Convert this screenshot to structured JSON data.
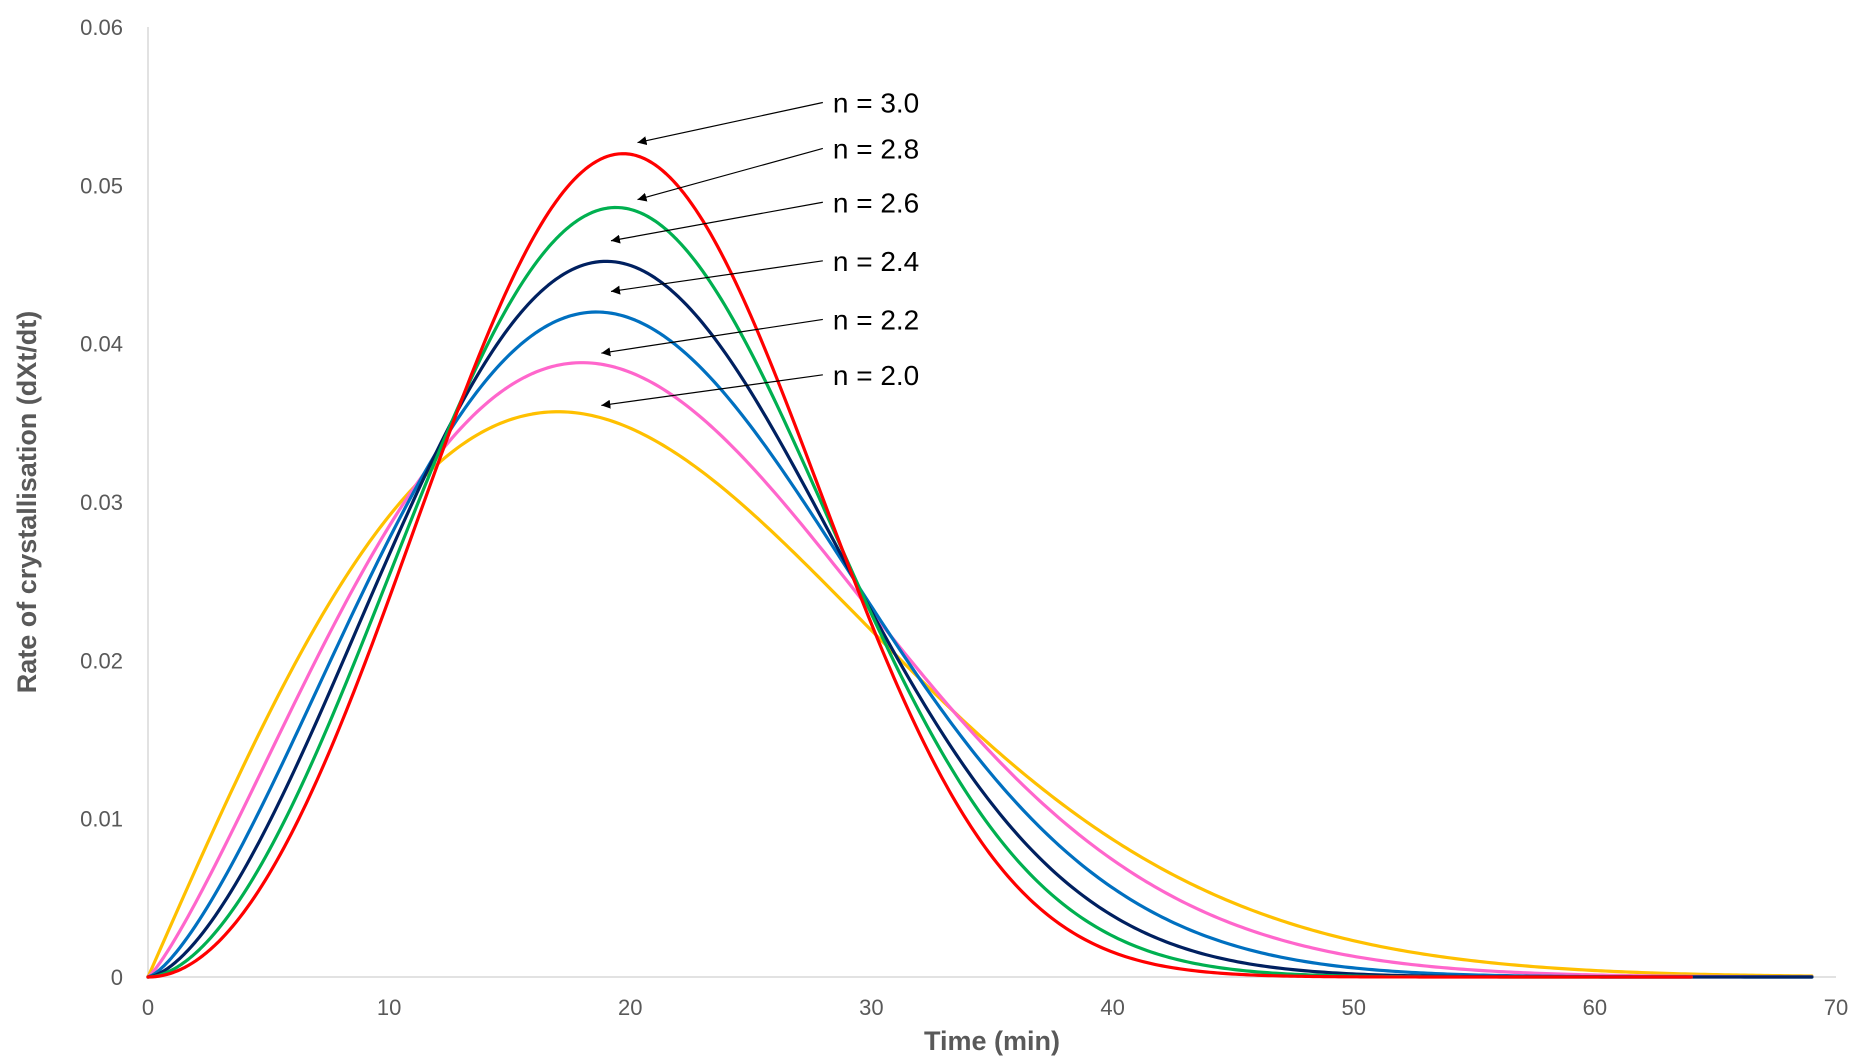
{
  "chart_data": {
    "type": "line",
    "title": "",
    "xlabel": "Time (min)",
    "ylabel": "Rate of crystallisation (dXt/dt)",
    "xlim": [
      0,
      70
    ],
    "ylim": [
      0,
      0.06
    ],
    "x_ticks": [
      0,
      10,
      20,
      30,
      40,
      50,
      60,
      70
    ],
    "y_ticks": [
      0,
      0.01,
      0.02,
      0.03,
      0.04,
      0.05,
      0.06
    ],
    "x_tick_labels": [
      "0",
      "10",
      "20",
      "30",
      "40",
      "50",
      "60",
      "70"
    ],
    "y_tick_labels": [
      "0",
      "0.01",
      "0.02",
      "0.03",
      "0.04",
      "0.05",
      "0.06"
    ],
    "grid": false,
    "legend": "none",
    "series": [
      {
        "name": "n = 2.0",
        "n": 2.0,
        "color": "#FFC000",
        "peak": {
          "x": 17.0,
          "y": 0.0357
        },
        "x_end": 69
      },
      {
        "name": "n = 2.2",
        "n": 2.2,
        "color": "#FF66CC",
        "peak": {
          "x": 18.0,
          "y": 0.0388
        },
        "x_end": 69
      },
      {
        "name": "n = 2.4",
        "n": 2.4,
        "color": "#0070C0",
        "peak": {
          "x": 18.6,
          "y": 0.042
        },
        "x_end": 69
      },
      {
        "name": "n = 2.6",
        "n": 2.6,
        "color": "#002060",
        "peak": {
          "x": 19.0,
          "y": 0.0452
        },
        "x_end": 69
      },
      {
        "name": "n = 2.8",
        "n": 2.8,
        "color": "#00B050",
        "peak": {
          "x": 19.4,
          "y": 0.0486
        },
        "x_end": 64
      },
      {
        "name": "n = 3.0",
        "n": 3.0,
        "color": "#FF0000",
        "peak": {
          "x": 19.7,
          "y": 0.052
        },
        "x_end": 64
      }
    ],
    "annotations": [
      {
        "text": "n = 3.0",
        "series": "n = 3.0",
        "text_at": {
          "x": 28.4,
          "y": 0.0546
        },
        "points_to": {
          "x": 20.3,
          "y": 0.0527
        }
      },
      {
        "text": "n = 2.8",
        "series": "n = 2.8",
        "text_at": {
          "x": 28.4,
          "y": 0.0517
        },
        "points_to": {
          "x": 20.3,
          "y": 0.0491
        }
      },
      {
        "text": "n = 2.6",
        "series": "n = 2.6",
        "text_at": {
          "x": 28.4,
          "y": 0.0483
        },
        "points_to": {
          "x": 19.2,
          "y": 0.0465
        }
      },
      {
        "text": "n = 2.4",
        "series": "n = 2.4",
        "text_at": {
          "x": 28.4,
          "y": 0.0446
        },
        "points_to": {
          "x": 19.2,
          "y": 0.0433
        }
      },
      {
        "text": "n = 2.2",
        "series": "n = 2.2",
        "text_at": {
          "x": 28.4,
          "y": 0.0409
        },
        "points_to": {
          "x": 18.8,
          "y": 0.0394
        }
      },
      {
        "text": "n = 2.0",
        "series": "n = 2.0",
        "text_at": {
          "x": 28.4,
          "y": 0.0374
        },
        "points_to": {
          "x": 18.8,
          "y": 0.0361
        }
      }
    ]
  }
}
